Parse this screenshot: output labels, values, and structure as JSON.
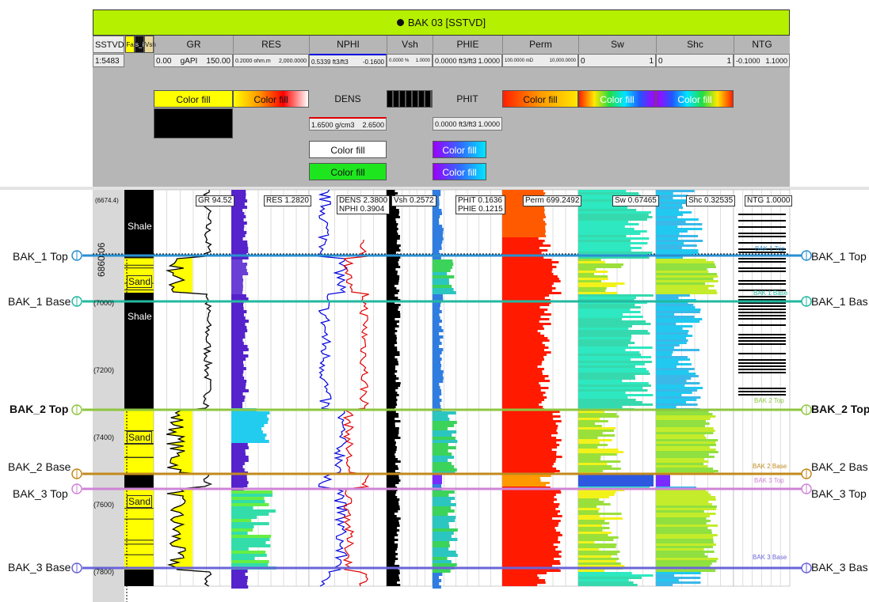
{
  "window_title": "BAK 03 [SSTVD]",
  "header": {
    "sstvd_label": "SSTVD",
    "scale_ratio": "1:5483",
    "mini_col1": "Fa",
    "mini_col2": "s_i",
    "mini_col3": "Vsh",
    "tracks": [
      {
        "name": "GR",
        "left": "0.00",
        "unit": "gAPI",
        "right": "150.00",
        "fill_label": "Color fill"
      },
      {
        "name": "RES",
        "left": "0.2000 ohm.m",
        "right": "2,000.0000",
        "fill_label": "Color fill"
      },
      {
        "name": "NPHI",
        "left": "0.5339 ft3/ft3",
        "right": "-0.1600",
        "sub_name": "DENS",
        "sub_left": "1.6500 g/cm3",
        "sub_right": "2.6500",
        "fill_label_1": "Color fill",
        "fill_label_2": "Color fill"
      },
      {
        "name": "Vsh",
        "left": "0.0000 %",
        "right": "1.0000"
      },
      {
        "name": "PHIE",
        "left": "0.0000 ft3/ft3",
        "right": "1.0000",
        "sub_name": "PHIT",
        "sub_left": "0.0000 ft3/ft3",
        "sub_right": "1.0000",
        "fill_label_1": "Color fill",
        "fill_label_2": "Color fill"
      },
      {
        "name": "Perm",
        "left": "100.0000 mD",
        "right": "10,000.0000",
        "fill_label": "Color fill"
      },
      {
        "name": "Sw",
        "left": "0",
        "right": "1",
        "fill_label": "Color fill"
      },
      {
        "name": "Shc",
        "left": "0",
        "right": "1",
        "fill_label": "Color fill"
      },
      {
        "name": "NTG",
        "left": "-0.1000",
        "right": "1.1000"
      }
    ]
  },
  "readouts": {
    "depth_top": "(6674.4)",
    "depth_cursor": "6860.06",
    "gr": "GR 94.52",
    "res": "RES 1.2820",
    "dens": "DENS 2.3800",
    "nphi": "NPHI 0.3904",
    "vsh": "Vsh 0.2572",
    "phit": "PHIT 0.1636",
    "phie": "PHIE 0.1215",
    "perm": "Perm 699.2492",
    "sw": "Sw 0.67465",
    "shc": "Shc 0.32535",
    "ntg": "NTG 1.0000"
  },
  "depth_labels": [
    "(7000)",
    "(7200)",
    "(7400)",
    "(7600)",
    "(7800)"
  ],
  "zones": [
    "Shale",
    "Sand",
    "Shale",
    "Sand",
    "Sand"
  ],
  "well_tops": [
    {
      "name": "BAK_1 Top",
      "right_name": "BAK_1 Top",
      "ntg_label": "BAK 1 Top",
      "color": "#2a8fd0"
    },
    {
      "name": "BAK_1 Base",
      "right_name": "BAK_1 Bas",
      "ntg_label": "BAK 1 Base",
      "color": "#22b9a0"
    },
    {
      "name": "BAK_2 Top",
      "right_name": "BAK_2 Top",
      "ntg_label": "BAK 2 Top",
      "color": "#8ec63f"
    },
    {
      "name": "BAK_2 Base",
      "right_name": "BAK_2 Bas",
      "ntg_label": "BAK 2 Base",
      "color": "#c28a1e"
    },
    {
      "name": "BAK_3 Top",
      "right_name": "BAK_3 Top",
      "ntg_label": "BAK 3 Top",
      "color": "#cf84d6"
    },
    {
      "name": "BAK_3 Base",
      "right_name": "BAK_3 Bas",
      "ntg_label": "BAK 3 Base",
      "color": "#6a64d8"
    }
  ],
  "colors": {
    "title_bar": "#b5f000",
    "header_bg": "#b6b6b6",
    "sand": "#ffff00",
    "shale": "#000000",
    "perm": "#ff1a00",
    "dens_curve": "#e00000",
    "nphi_curve": "#0000dd"
  }
}
